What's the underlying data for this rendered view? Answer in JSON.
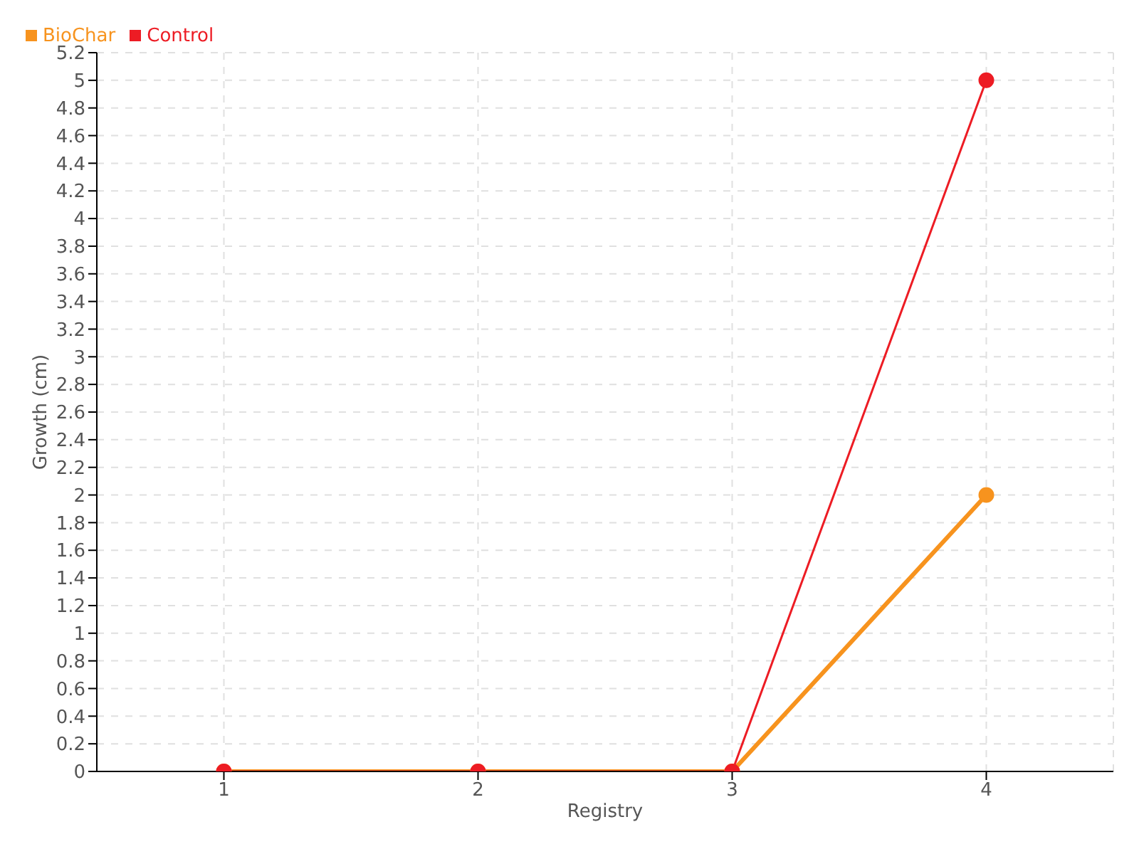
{
  "chart_data": {
    "type": "line",
    "xlabel": "Registry",
    "ylabel": "Growth (cm)",
    "x": [
      1,
      2,
      3,
      4
    ],
    "series": [
      {
        "name": "BioChar",
        "color": "#f7931e",
        "values": [
          0,
          0,
          0,
          2
        ]
      },
      {
        "name": "Control",
        "color": "#ed1c24",
        "values": [
          0,
          0,
          0,
          5
        ]
      }
    ],
    "xlim": [
      0.5,
      4.5
    ],
    "xticks": [
      1,
      2,
      3,
      4
    ],
    "ylim": [
      0,
      5.2
    ],
    "yticks": [
      0,
      0.2,
      0.4,
      0.6,
      0.8,
      1,
      1.2,
      1.4,
      1.6,
      1.8,
      2,
      2.2,
      2.4,
      2.6,
      2.8,
      3,
      3.2,
      3.4,
      3.6,
      3.8,
      4,
      4.2,
      4.4,
      4.6,
      4.8,
      5,
      5.2
    ],
    "grid": true,
    "legend": "top left",
    "marker": "circle",
    "line_style": "solid"
  }
}
